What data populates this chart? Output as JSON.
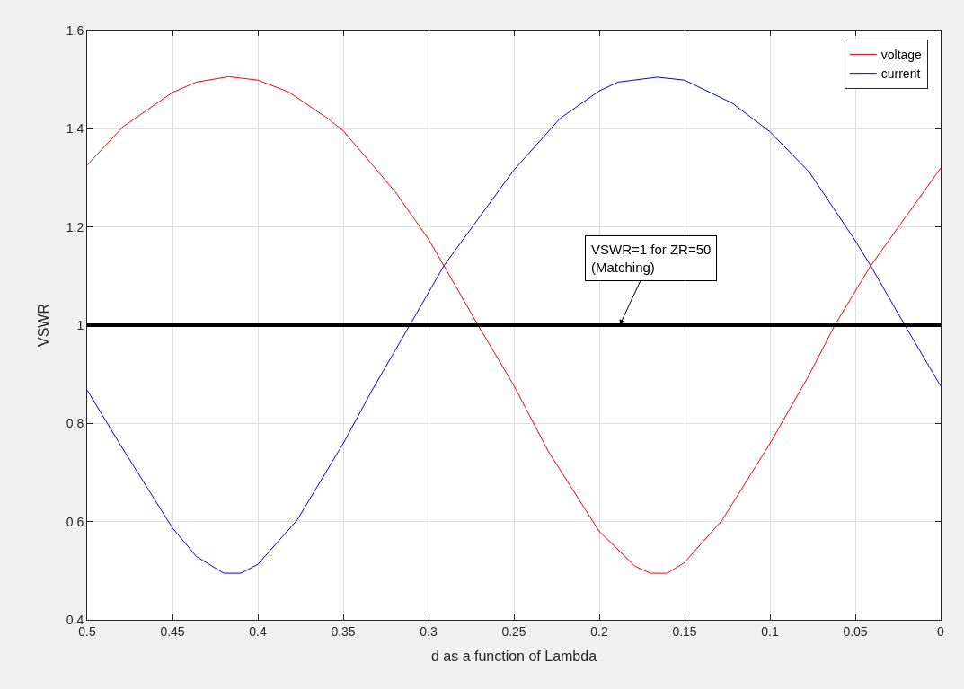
{
  "chart_data": {
    "type": "line",
    "xlabel": "d as a function of Lambda",
    "ylabel": "VSWR",
    "xlim": [
      0.5,
      0
    ],
    "ylim": [
      0.4,
      1.6
    ],
    "xticks": [
      0.5,
      0.45,
      0.4,
      0.35,
      0.3,
      0.25,
      0.2,
      0.15,
      0.1,
      0.05,
      0
    ],
    "yticks": [
      0.4,
      0.6,
      0.8,
      1,
      1.2,
      1.4,
      1.6
    ],
    "grid": true,
    "legend": "top right",
    "marker": "none",
    "line_style": "solid",
    "series": [
      {
        "name": "voltage",
        "color": "#ff0000",
        "x": [
          0.5,
          0.479,
          0.45,
          0.436,
          0.417,
          0.4,
          0.382,
          0.359,
          0.35,
          0.333,
          0.319,
          0.3,
          0.291,
          0.271,
          0.25,
          0.23,
          0.2,
          0.179,
          0.17,
          0.16,
          0.15,
          0.128,
          0.1,
          0.077,
          0.062,
          0.041,
          0.021,
          0
        ],
        "values": [
          1.326,
          1.404,
          1.474,
          1.495,
          1.506,
          1.499,
          1.475,
          1.421,
          1.396,
          1.327,
          1.269,
          1.175,
          1.121,
          1.0,
          0.877,
          0.744,
          0.58,
          0.509,
          0.495,
          0.495,
          0.517,
          0.603,
          0.759,
          0.899,
          1.0,
          1.121,
          1.218,
          1.32
        ]
      },
      {
        "name": "current",
        "color": "#0000ff",
        "x": [
          0.5,
          0.481,
          0.45,
          0.436,
          0.42,
          0.41,
          0.4,
          0.377,
          0.35,
          0.333,
          0.311,
          0.291,
          0.25,
          0.223,
          0.2,
          0.189,
          0.166,
          0.15,
          0.122,
          0.1,
          0.077,
          0.05,
          0.041,
          0.021,
          0
        ],
        "values": [
          0.868,
          0.759,
          0.587,
          0.529,
          0.495,
          0.495,
          0.513,
          0.603,
          0.759,
          0.868,
          1.0,
          1.121,
          1.316,
          1.421,
          1.477,
          1.495,
          1.505,
          1.499,
          1.452,
          1.394,
          1.312,
          1.172,
          1.121,
          1.0,
          0.876
        ]
      }
    ],
    "ref_lines": [
      {
        "axis": "y",
        "value": 1,
        "color": "#000000",
        "line_style": "solid"
      }
    ],
    "annotations": [
      {
        "text": "VSWR=1 for ZR=50\n(Matching)",
        "x": 0.188,
        "y": 1
      }
    ]
  }
}
